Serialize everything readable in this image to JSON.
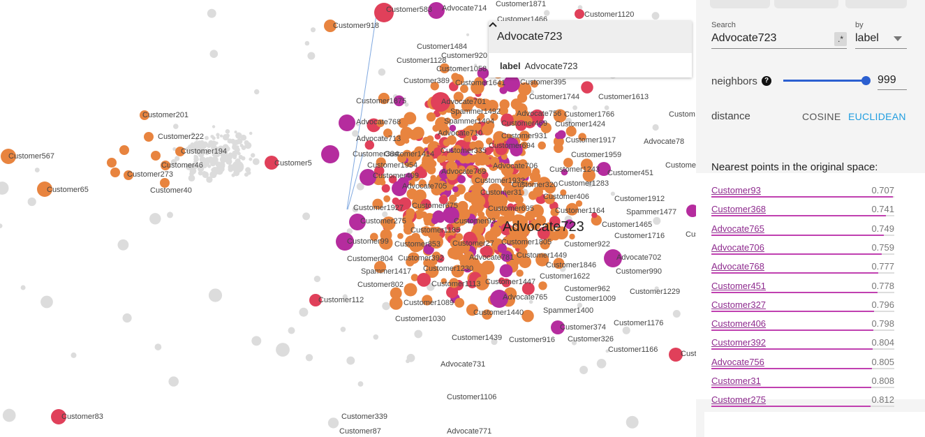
{
  "projector": {
    "selected_label": "Advocate723",
    "point_labels": [
      "Customer583",
      "Advocate714",
      "Customer1871",
      "Customer1466",
      "Customer1120",
      "Customer918",
      "Customer1484",
      "Customer920",
      "Customer1128",
      "Customer1058",
      "Customer389",
      "Customer1641",
      "Customer395",
      "Advocate701",
      "Customer1744",
      "Customer1613",
      "Customer1875",
      "Spammer1492",
      "Advocate756",
      "Customer1766",
      "Customer201",
      "Spammer1404",
      "Customer469",
      "Customer1424",
      "Advocate768",
      "Advocate710",
      "Customer931",
      "Customer222",
      "Advocate713",
      "Customer1917",
      "Advocate78",
      "Customer694",
      "Customer194",
      "Customer567",
      "Customer384",
      "Customer1414",
      "Customer335",
      "Customer1959",
      "Customer5",
      "Customer1954",
      "Advocate706",
      "Customer46",
      "Customer273",
      "Customer409",
      "Advocate769",
      "Customer1243",
      "Customer451",
      "Customer1932",
      "Customer1283",
      "Customer40",
      "Customer65",
      "Advocate705",
      "Customer320",
      "Customer31",
      "Customer406",
      "Customer1912",
      "Customer675",
      "Customer1927",
      "Customer695",
      "Customer1164",
      "Spammer1477",
      "Customer275",
      "Customer93",
      "Customer1465",
      "Customer1185",
      "Customer1716",
      "Customer99",
      "Customer853",
      "Customer27",
      "Customer1805",
      "Customer922",
      "Customer804",
      "Customer392",
      "Advocate781",
      "Customer1449",
      "Advocate702",
      "Spammer1417",
      "Customer1230",
      "Customer1846",
      "Customer990",
      "Customer1622",
      "Customer802",
      "Customer1113",
      "Customer1447",
      "Customer962",
      "Customer1229",
      "Customer112",
      "Customer1089",
      "Advocate765",
      "Customer1009",
      "Spammer1400",
      "Customer1440",
      "Customer1030",
      "Customer374",
      "Customer1176",
      "Customer1439",
      "Customer916",
      "Customer326",
      "Customer1166",
      "Advocate731",
      "Customer1106",
      "Customer83",
      "Customer339",
      "Customer87",
      "Advocate771",
      "Custom",
      "Custome",
      "Cus",
      "Cust"
    ]
  },
  "info_card": {
    "title": "Advocate723",
    "field_key": "label",
    "field_value": "Advocate723"
  },
  "panel": {
    "search": {
      "label": "Search",
      "value": "Advocate723",
      "regex": ".*",
      "by_label": "by",
      "by_value": "label"
    },
    "neighbors": {
      "label": "neighbors",
      "help": "?",
      "value": "999"
    },
    "distance": {
      "label": "distance",
      "cosine": "COSINE",
      "euclidean": "EUCLIDEAN"
    },
    "nearest_title": "Nearest points in the original space:",
    "nearest": [
      {
        "name": "Customer93",
        "value": "0.707"
      },
      {
        "name": "Customer368",
        "value": "0.741"
      },
      {
        "name": "Advocate765",
        "value": "0.749"
      },
      {
        "name": "Advocate706",
        "value": "0.759"
      },
      {
        "name": "Advocate768",
        "value": "0.777"
      },
      {
        "name": "Customer451",
        "value": "0.778"
      },
      {
        "name": "Customer327",
        "value": "0.796"
      },
      {
        "name": "Customer406",
        "value": "0.798"
      },
      {
        "name": "Customer392",
        "value": "0.804"
      },
      {
        "name": "Advocate756",
        "value": "0.805"
      },
      {
        "name": "Customer31",
        "value": "0.808"
      },
      {
        "name": "Customer275",
        "value": "0.812"
      }
    ]
  },
  "colors": {
    "orange": "#e8843f",
    "red": "#e0405a",
    "magenta": "#b52c9e",
    "gray": "#dcdcdc",
    "accent": "#2b5fd0",
    "euclidean_text": "#1f9de0"
  }
}
